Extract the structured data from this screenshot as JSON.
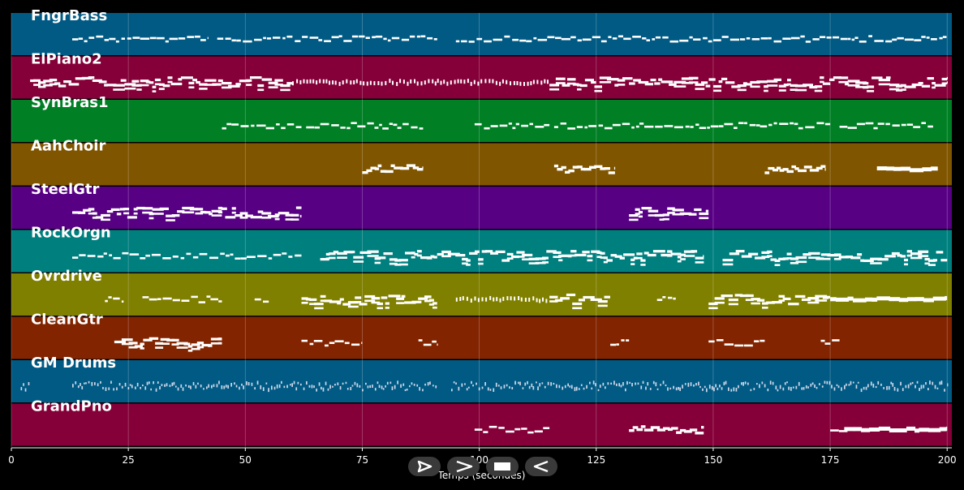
{
  "chart_data": {
    "type": "piano-roll",
    "xlabel": "Temps (secondes)",
    "xlim": [
      0,
      201
    ],
    "xticks": [
      0,
      25,
      50,
      75,
      100,
      125,
      150,
      175,
      200
    ],
    "grid": true,
    "tracks": [
      {
        "name": "FngrBass",
        "color": "#005a84",
        "segments": [
          [
            13,
            42,
            "line"
          ],
          [
            44,
            70,
            "line"
          ],
          [
            70,
            91,
            "line"
          ],
          [
            95,
            110,
            "line"
          ],
          [
            110,
            150,
            "line"
          ],
          [
            150,
            200,
            "line"
          ]
        ]
      },
      {
        "name": "ElPiano2",
        "color": "#850038",
        "segments": [
          [
            4,
            60,
            "dense"
          ],
          [
            60,
            91,
            "light"
          ],
          [
            91,
            115,
            "light"
          ],
          [
            115,
            175,
            "dense"
          ],
          [
            175,
            200,
            "dense"
          ]
        ]
      },
      {
        "name": "SynBras1",
        "color": "#007f25",
        "segments": [
          [
            45,
            62,
            "line"
          ],
          [
            63,
            88,
            "line"
          ],
          [
            99,
            115,
            "line"
          ],
          [
            116,
            160,
            "line"
          ],
          [
            160,
            175,
            "line"
          ],
          [
            177,
            197,
            "line"
          ]
        ]
      },
      {
        "name": "AahChoir",
        "color": "#805500",
        "segments": [
          [
            75,
            88,
            "block"
          ],
          [
            116,
            129,
            "block"
          ],
          [
            161,
            174,
            "block"
          ],
          [
            185,
            198,
            "thick"
          ]
        ]
      },
      {
        "name": "SteelGtr",
        "color": "#580084",
        "segments": [
          [
            13,
            62,
            "dense"
          ],
          [
            132,
            149,
            "dense"
          ]
        ]
      },
      {
        "name": "RockOrgn",
        "color": "#007f7f",
        "segments": [
          [
            13,
            62,
            "line"
          ],
          [
            66,
            91,
            "dense"
          ],
          [
            91,
            148,
            "dense"
          ],
          [
            152,
            200,
            "dense"
          ]
        ]
      },
      {
        "name": "Ovrdrive",
        "color": "#7f7f00",
        "segments": [
          [
            20,
            24,
            "line"
          ],
          [
            28,
            45,
            "line"
          ],
          [
            52,
            55,
            "line"
          ],
          [
            62,
            91,
            "dense"
          ],
          [
            95,
            115,
            "light"
          ],
          [
            115,
            128,
            "dense"
          ],
          [
            138,
            142,
            "line"
          ],
          [
            149,
            175,
            "dense"
          ],
          [
            175,
            200,
            "thick"
          ]
        ]
      },
      {
        "name": "CleanGtr",
        "color": "#822400",
        "segments": [
          [
            22,
            45,
            "dense"
          ],
          [
            62,
            75,
            "line"
          ],
          [
            87,
            91,
            "line"
          ],
          [
            128,
            132,
            "line"
          ],
          [
            149,
            161,
            "line"
          ],
          [
            173,
            177,
            "line"
          ]
        ]
      },
      {
        "name": "GM Drums",
        "color": "#005a84",
        "segments": [
          [
            2,
            4,
            "drum"
          ],
          [
            13,
            91,
            "drum"
          ],
          [
            94,
            200,
            "drum"
          ]
        ]
      },
      {
        "name": "GrandPno",
        "color": "#850038",
        "segments": [
          [
            99,
            115,
            "line"
          ],
          [
            132,
            148,
            "block"
          ],
          [
            175,
            180,
            "line"
          ],
          [
            178,
            200,
            "thick"
          ]
        ]
      }
    ]
  },
  "controls": [
    {
      "name": "play-button",
      "icon": "play-icon"
    },
    {
      "name": "fast-forward-button",
      "icon": "fast-forward-icon"
    },
    {
      "name": "stop-button",
      "icon": "stop-icon"
    },
    {
      "name": "rewind-button",
      "icon": "rewind-icon"
    }
  ]
}
